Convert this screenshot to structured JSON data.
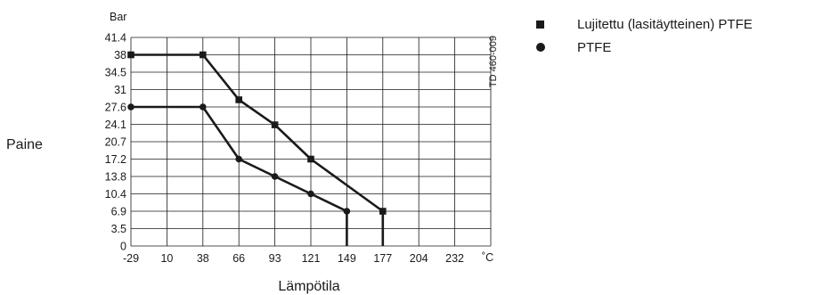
{
  "chart_data": {
    "type": "line",
    "ylabel": "Paine",
    "xlabel": "Lämpötila",
    "y_unit": "Bar",
    "x_unit": "˚C",
    "annotation": "TD 460-009",
    "x_ticks": [
      "-29",
      "10",
      "38",
      "66",
      "93",
      "121",
      "149",
      "177",
      "204",
      "232"
    ],
    "y_ticks": [
      "0",
      "3.5",
      "6.9",
      "10.4",
      "13.8",
      "17.2",
      "20.7",
      "24.1",
      "27.6",
      "31",
      "34.5",
      "38",
      "41.4"
    ],
    "xlim": [
      -29,
      260
    ],
    "ylim": [
      0,
      41.4
    ],
    "grid": true,
    "legend_position": "top-right",
    "series": [
      {
        "name": "Lujitettu (lasitäytteinen) PTFE",
        "marker": "square",
        "x": [
          -29,
          38,
          66,
          93,
          121,
          177,
          177
        ],
        "y": [
          38,
          38,
          29,
          24,
          17.2,
          6.9,
          0
        ]
      },
      {
        "name": "PTFE",
        "marker": "circle",
        "x": [
          -29,
          38,
          66,
          93,
          121,
          149,
          149
        ],
        "y": [
          27.6,
          27.6,
          17.2,
          13.8,
          10.4,
          6.9,
          0
        ]
      }
    ],
    "colors": {
      "ink": "#1a1a1a",
      "background": "#ffffff"
    }
  }
}
